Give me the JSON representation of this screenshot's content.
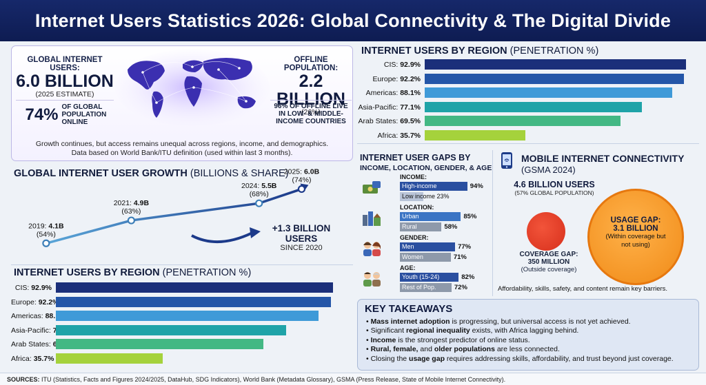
{
  "header": {
    "title": "Internet Users Statistics 2026: Global Connectivity & The Digital Divide"
  },
  "hero": {
    "users_label": "GLOBAL INTERNET USERS:",
    "users_value": "6.0 BILLION",
    "users_sub": "(2025 ESTIMATE)",
    "share_value": "74%",
    "share_text": "OF GLOBAL POPULATION ONLINE",
    "offline_label": "OFFLINE POPULATION:",
    "offline_value": "2.2 BILLION",
    "offline_sub": "(26%)",
    "offline_pct": "96%",
    "offline_text": "OF OFFLINE LIVE IN LOW- & MIDDLE-INCOME COUNTRIES",
    "note1": "Growth continues, but access remains unequal across regions, income, and demographics.",
    "note2": "Data based on World Bank/ITU definition (used within last 3 months)."
  },
  "growth": {
    "title_bold": "GLOBAL INTERNET USER GROWTH",
    "title_rest": " (BILLIONS & SHARE)",
    "callout_value": "+1.3 BILLION USERS",
    "callout_sub": "SINCE 2020"
  },
  "regions_title": {
    "bold": "INTERNET USERS BY REGION",
    "rest": " (PENETRATION %)"
  },
  "gaps": {
    "title1": "INTERNET USER GAPS BY",
    "title2": "INCOME, LOCATION, GENDER, & AGE",
    "groups": [
      {
        "head": "INCOME:",
        "icon": "money-icon",
        "rows": [
          {
            "label": "High-income",
            "value": "94%",
            "pct": 94,
            "color": "#2a4fa0"
          },
          {
            "label": "Low income 23%",
            "value": "",
            "pct": 23,
            "color": "#b9c4d8"
          }
        ]
      },
      {
        "head": "LOCATION:",
        "icon": "city-icon",
        "rows": [
          {
            "label": "Urban",
            "value": "85%",
            "pct": 85,
            "color": "#3a74c4"
          },
          {
            "label": "Rural",
            "value": "58%",
            "pct": 58,
            "color": "#8e99aa"
          }
        ]
      },
      {
        "head": "GENDER:",
        "icon": "people-icon",
        "rows": [
          {
            "label": "Men",
            "value": "77%",
            "pct": 77,
            "color": "#2a4fa0"
          },
          {
            "label": "Women",
            "value": "71%",
            "pct": 71,
            "color": "#8e99aa"
          }
        ]
      },
      {
        "head": "AGE:",
        "icon": "age-icon",
        "rows": [
          {
            "label": "Youth (15-24)",
            "value": "82%",
            "pct": 82,
            "color": "#2a4fa0"
          },
          {
            "label": "Rest of Pop.",
            "value": "72%",
            "pct": 72,
            "color": "#8e99aa"
          }
        ]
      }
    ]
  },
  "mobile": {
    "title1": "MOBILE INTERNET CONNECTIVITY",
    "title2": "(GSMA 2024)",
    "users": "4.6 BILLION USERS",
    "users_sub": "(57% GLOBAL POPULATION)",
    "usage_title": "USAGE GAP:",
    "usage_value": "3.1 BILLION",
    "usage_sub": "(Within coverage but not using)",
    "coverage_title": "COVERAGE GAP:",
    "coverage_value": "350 MILLION",
    "coverage_sub": "(Outside coverage)",
    "note": "Affordability, skills, safety, and content remain key barriers."
  },
  "takeaways": {
    "title": "KEY TAKEAWAYS",
    "items": [
      [
        "Mass internet adoption",
        " is progressing, but universal access is not yet achieved."
      ],
      [
        "Significant ",
        "regional inequality",
        " exists, with Africa lagging behind."
      ],
      [
        "Income",
        " is the strongest predictor of online status."
      ],
      [
        "Rural, female,",
        " and ",
        "older populations",
        " are less connected."
      ],
      [
        "Closing the ",
        "usage gap",
        " requires addressing skills, affordability, and trust beyond just coverage."
      ]
    ]
  },
  "sources": {
    "bold": "SOURCES:",
    "text": " ITU (Statistics, Facts and Figures 2024/2025, DataHub, SDG Indicators), World Bank (Metadata Glossary), GSMA (Press Release, State of Mobile Internet Connectivity)."
  },
  "chart_data": [
    {
      "type": "line",
      "title": "GLOBAL INTERNET USER GROWTH (BILLIONS & SHARE)",
      "x": [
        2019,
        2021,
        2024,
        2025
      ],
      "series": [
        {
          "values": [
            4.1,
            4.9,
            5.5,
            6.0
          ]
        }
      ],
      "labels": [
        "2019: 4.1B",
        "2021: 4.9B",
        "2024: 5.5B",
        "2025: 6.0B"
      ],
      "shares": [
        "(54%)",
        "(63%)",
        "(68%)",
        "(74%)"
      ]
    },
    {
      "type": "bar",
      "orientation": "horizontal",
      "title": "INTERNET USERS BY REGION (PENETRATION %)",
      "categories": [
        "CIS",
        "Europe",
        "Americas",
        "Asia-Pacific",
        "Arab States",
        "Africa"
      ],
      "values": [
        92.9,
        92.2,
        88.1,
        77.1,
        69.5,
        35.7
      ],
      "colors": [
        "#1b2f7a",
        "#2456a8",
        "#3f9ad8",
        "#1fa3a8",
        "#43b884",
        "#a5d23c"
      ]
    },
    {
      "type": "bar",
      "orientation": "horizontal",
      "title": "INTERNET USERS BY REGION (PENETRATION %)",
      "categories": [
        "CIS",
        "Europe",
        "Americas",
        "Asia-Pacific",
        "Arab States",
        "Africa"
      ],
      "values": [
        92.9,
        92.2,
        88.1,
        77.1,
        69.5,
        35.7
      ],
      "colors": [
        "#1b2f7a",
        "#2456a8",
        "#3f9ad8",
        "#1fa3a8",
        "#43b884",
        "#a5d23c"
      ]
    }
  ]
}
